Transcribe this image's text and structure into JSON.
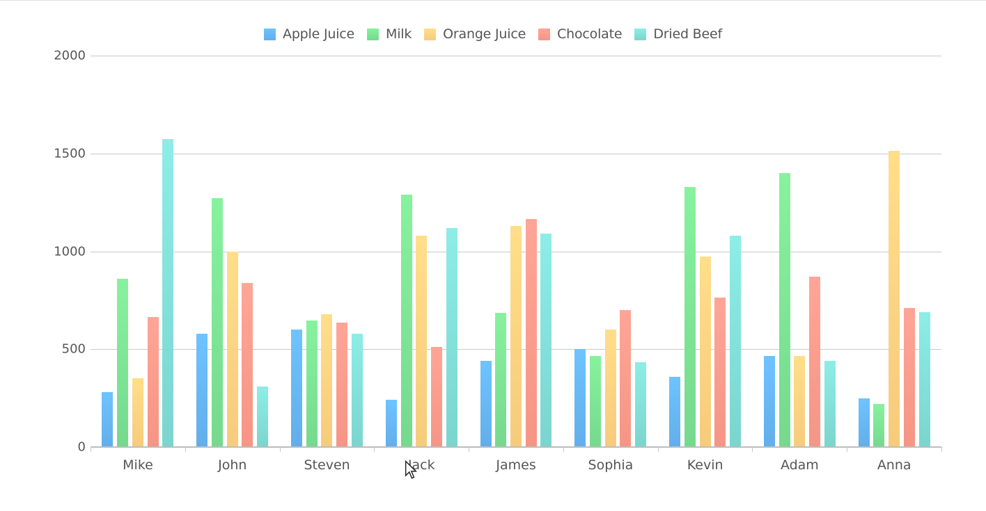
{
  "chart_data": {
    "type": "bar",
    "title": "",
    "xlabel": "",
    "ylabel": "",
    "ylim": [
      0,
      2000
    ],
    "yticks": [
      0,
      500,
      1000,
      1500,
      2000
    ],
    "grid": true,
    "legend_position": "top",
    "categories": [
      "Mike",
      "John",
      "Steven",
      "Jack",
      "James",
      "Sophia",
      "Kevin",
      "Adam",
      "Anna"
    ],
    "series": [
      {
        "name": "Apple Juice",
        "color_top": "#6EC3FF",
        "color_bottom": "#62AEEA",
        "values": [
          280,
          580,
          600,
          240,
          440,
          500,
          360,
          465,
          250
        ]
      },
      {
        "name": "Milk",
        "color_top": "#87F29E",
        "color_bottom": "#76D98E",
        "values": [
          860,
          1270,
          645,
          1290,
          685,
          465,
          1330,
          1400,
          220
        ]
      },
      {
        "name": "Orange Juice",
        "color_top": "#FFDE8A",
        "color_bottom": "#F6CB7C",
        "values": [
          350,
          1000,
          680,
          1080,
          1130,
          600,
          975,
          465,
          1515
        ]
      },
      {
        "name": "Chocolate",
        "color_top": "#FFA597",
        "color_bottom": "#F59585",
        "values": [
          665,
          840,
          635,
          510,
          1165,
          700,
          765,
          870,
          710
        ]
      },
      {
        "name": "Dried Beef",
        "color_top": "#8DEDE7",
        "color_bottom": "#7BD5CE",
        "values": [
          1575,
          310,
          580,
          1120,
          1090,
          435,
          1080,
          440,
          690
        ]
      }
    ]
  },
  "legend": {
    "items": [
      "Apple Juice",
      "Milk",
      "Orange Juice",
      "Chocolate",
      "Dried Beef"
    ]
  },
  "yaxis": {
    "labels": [
      "0",
      "500",
      "1000",
      "1500",
      "2000"
    ]
  },
  "xaxis": {
    "labels": [
      "Mike",
      "John",
      "Steven",
      "Jack",
      "James",
      "Sophia",
      "Kevin",
      "Adam",
      "Anna"
    ]
  }
}
